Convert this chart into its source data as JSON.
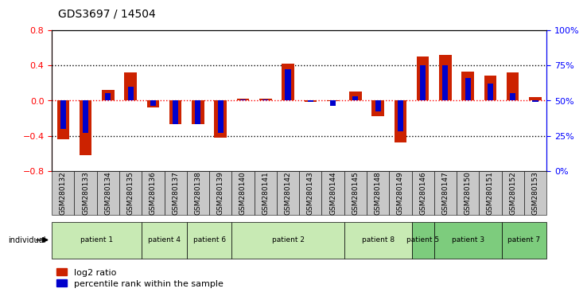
{
  "title": "GDS3697 / 14504",
  "samples": [
    "GSM280132",
    "GSM280133",
    "GSM280134",
    "GSM280135",
    "GSM280136",
    "GSM280137",
    "GSM280138",
    "GSM280139",
    "GSM280140",
    "GSM280141",
    "GSM280142",
    "GSM280143",
    "GSM280144",
    "GSM280145",
    "GSM280148",
    "GSM280149",
    "GSM280146",
    "GSM280147",
    "GSM280150",
    "GSM280151",
    "GSM280152",
    "GSM280153"
  ],
  "log2_ratio": [
    -0.44,
    -0.62,
    0.12,
    0.32,
    -0.08,
    -0.27,
    -0.27,
    -0.42,
    0.02,
    0.02,
    0.42,
    -0.02,
    -0.01,
    0.1,
    -0.18,
    -0.48,
    0.5,
    0.52,
    0.33,
    0.28,
    0.32,
    0.04
  ],
  "percentile": [
    30,
    27,
    55,
    60,
    46,
    33,
    33,
    27,
    51,
    51,
    72,
    49,
    46,
    53,
    42,
    28,
    75,
    75,
    66,
    62,
    55,
    49
  ],
  "patients": [
    {
      "label": "patient 1",
      "start": 0,
      "end": 4,
      "color": "#c8eab4"
    },
    {
      "label": "patient 4",
      "start": 4,
      "end": 6,
      "color": "#c8eab4"
    },
    {
      "label": "patient 6",
      "start": 6,
      "end": 8,
      "color": "#c8eab4"
    },
    {
      "label": "patient 2",
      "start": 8,
      "end": 13,
      "color": "#c8eab4"
    },
    {
      "label": "patient 8",
      "start": 13,
      "end": 16,
      "color": "#c8eab4"
    },
    {
      "label": "patient 5",
      "start": 16,
      "end": 17,
      "color": "#7dcc7d"
    },
    {
      "label": "patient 3",
      "start": 17,
      "end": 20,
      "color": "#7dcc7d"
    },
    {
      "label": "patient 7",
      "start": 20,
      "end": 22,
      "color": "#7dcc7d"
    }
  ],
  "bar_color_red": "#cc2200",
  "bar_color_blue": "#0000cc",
  "ylim": [
    -0.8,
    0.8
  ],
  "y2lim": [
    0,
    100
  ],
  "yticks": [
    -0.8,
    -0.4,
    0.0,
    0.4,
    0.8
  ],
  "y2ticks": [
    0,
    25,
    50,
    75,
    100
  ],
  "background_color": "#ffffff",
  "tick_label_fontsize": 6.5,
  "label_fontsize": 8,
  "legend_fontsize": 8,
  "title_fontsize": 10,
  "sample_box_color": "#c8c8c8"
}
